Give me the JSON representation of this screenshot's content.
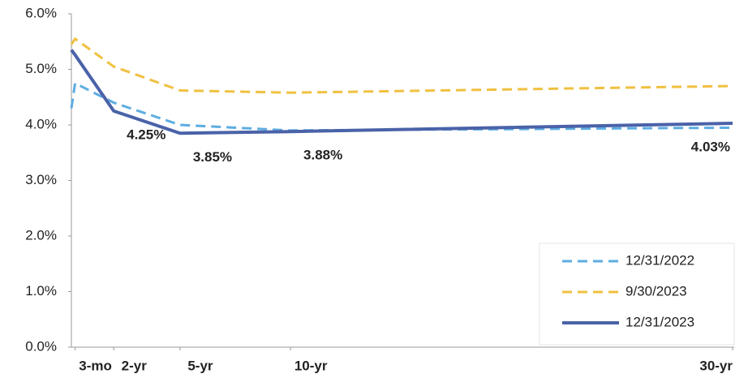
{
  "chart_data": {
    "type": "line",
    "x": [
      0.083,
      0.25,
      2,
      5,
      10,
      30
    ],
    "xlim": [
      0.083,
      30
    ],
    "xticks": [
      {
        "value": 0.25,
        "label": "3-mo"
      },
      {
        "value": 2,
        "label": "2-yr"
      },
      {
        "value": 5,
        "label": "5-yr"
      },
      {
        "value": 10,
        "label": "10-yr"
      },
      {
        "value": 30,
        "label": "30-yr"
      }
    ],
    "ylim": [
      0,
      6
    ],
    "yticks": [
      {
        "value": 0,
        "label": "0.0%"
      },
      {
        "value": 1,
        "label": "1.0%"
      },
      {
        "value": 2,
        "label": "2.0%"
      },
      {
        "value": 3,
        "label": "3.0%"
      },
      {
        "value": 4,
        "label": "4.0%"
      },
      {
        "value": 5,
        "label": "5.0%"
      },
      {
        "value": 6,
        "label": "6.0%"
      }
    ],
    "grid": false,
    "legend": "lower-right",
    "series": [
      {
        "name": "12/31/2022",
        "color": "#5dade2",
        "dash": "dashed",
        "values": [
          4.3,
          4.75,
          4.4,
          4.0,
          3.9,
          3.95
        ]
      },
      {
        "name": "9/30/2023",
        "color": "#f0c040",
        "dash": "dashed",
        "values": [
          5.45,
          5.55,
          5.05,
          4.62,
          4.58,
          4.7
        ]
      },
      {
        "name": "12/31/2023",
        "color": "#4a62a8",
        "dash": "solid",
        "values": [
          5.35,
          5.26,
          4.25,
          3.85,
          3.88,
          4.03
        ],
        "value_labels": [
          null,
          null,
          "4.25%",
          "3.85%",
          "3.88%",
          "4.03%"
        ]
      }
    ]
  }
}
